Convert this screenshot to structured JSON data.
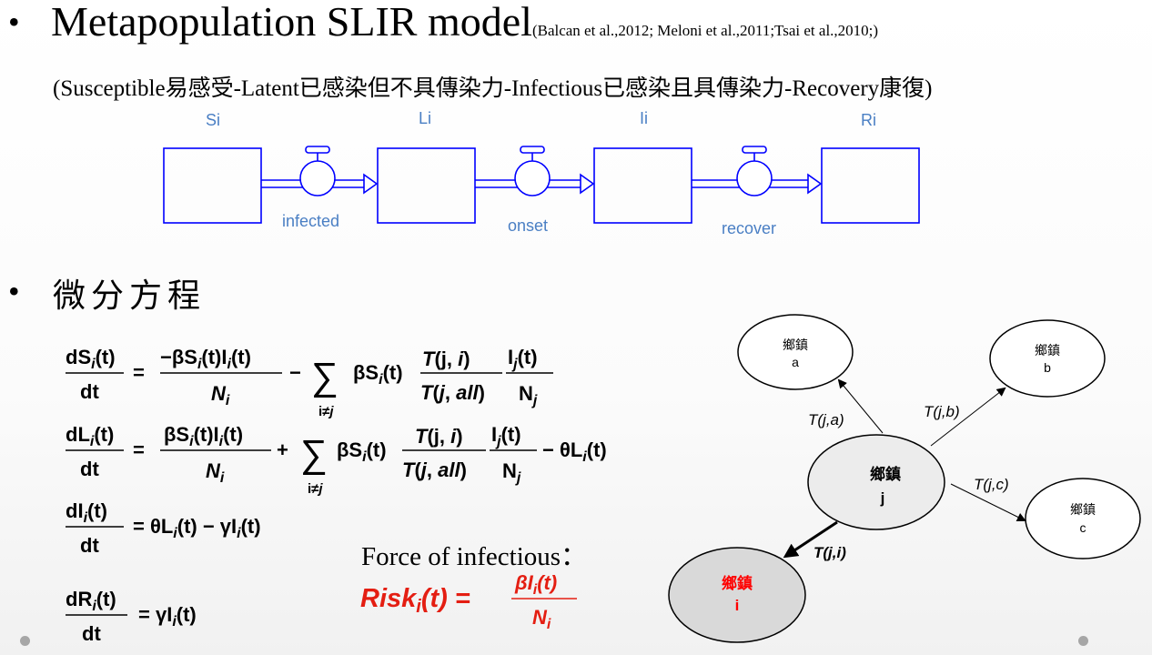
{
  "title": {
    "main": "Metapopulation SLIR model",
    "citation": "(Balcan et al.,2012; Meloni et al.,2011;Tsai et al.,2010;)"
  },
  "subtitle": "(Susceptible易感受-Latent已感染但不具傳染力-Infectious已感染且具傳染力-Recovery康復)",
  "flow_diagram": {
    "stocks": [
      "Si",
      "Li",
      "Ii",
      "Ri"
    ],
    "flows": [
      "infected",
      "onset",
      "recover"
    ],
    "color": "#0000ff",
    "label_color": "#4a7fc4"
  },
  "section2_title": "微分方程",
  "force": {
    "label": "Force of infectious：",
    "color": "#e41e12"
  },
  "network": {
    "node_label": "鄉鎮",
    "nodes": [
      {
        "id": "a",
        "name": "a"
      },
      {
        "id": "b",
        "name": "b"
      },
      {
        "id": "j",
        "name": "j"
      },
      {
        "id": "c",
        "name": "c"
      },
      {
        "id": "i",
        "name": "i"
      }
    ],
    "edges": [
      "T(j,a)",
      "T(j,b)",
      "T(j,c)",
      "T(j,i)"
    ],
    "highlight_fill": "#d9d9d9",
    "i_text_color": "#ff0000"
  }
}
